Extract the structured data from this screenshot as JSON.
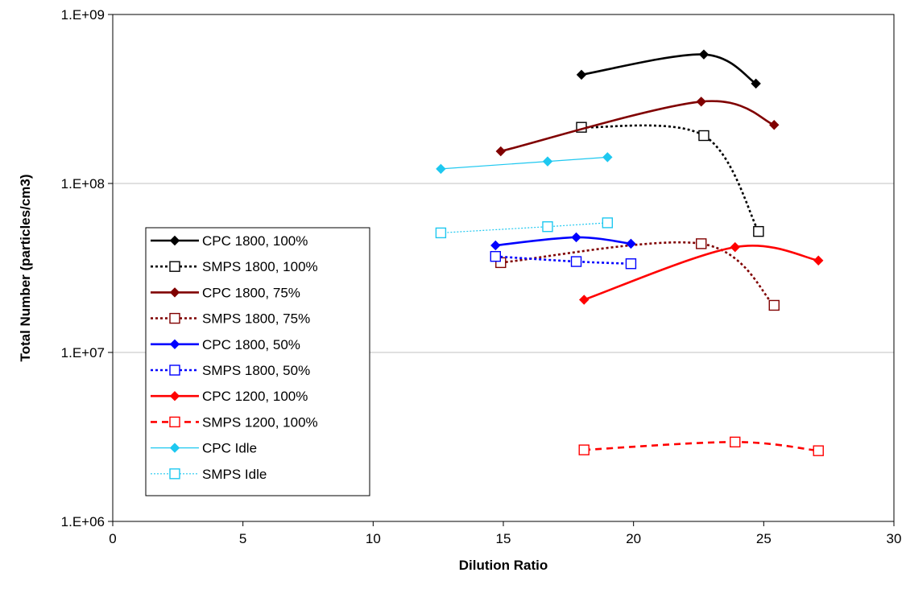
{
  "chart_data": {
    "type": "line",
    "title": "",
    "xlabel": "Dilution Ratio",
    "ylabel": "Total Number (particles/cm3)",
    "xlim": [
      0,
      30
    ],
    "x_ticks": [
      0,
      5,
      10,
      15,
      20,
      25,
      30
    ],
    "x_tick_labels": [
      "0",
      "5",
      "10",
      "15",
      "20",
      "25",
      "30"
    ],
    "y_scale": "log",
    "ylim": [
      1000000,
      1000000000
    ],
    "y_ticks": [
      1000000,
      10000000,
      100000000,
      1000000000
    ],
    "y_tick_labels": [
      "1.E+06",
      "1.E+07",
      "1.E+08",
      "1.E+09"
    ],
    "grid": "horizontal major",
    "legend_position": "left-center inside plot",
    "series": [
      {
        "name": "CPC 1800, 100%",
        "color": "#000000",
        "style": "solid",
        "marker": "diamond-filled",
        "smooth": true,
        "x": [
          18.0,
          22.7,
          24.7
        ],
        "y": [
          440000000,
          580000000,
          390000000
        ]
      },
      {
        "name": "SMPS 1800, 100%",
        "color": "#000000",
        "style": "dotted",
        "marker": "square-open",
        "smooth": true,
        "x": [
          18.0,
          22.7,
          24.8
        ],
        "y": [
          215000000,
          192000000,
          52000000
        ]
      },
      {
        "name": "CPC 1800, 75%",
        "color": "#800000",
        "style": "solid",
        "marker": "diamond-filled",
        "smooth": true,
        "x": [
          14.9,
          22.6,
          25.4
        ],
        "y": [
          155000000,
          305000000,
          222000000
        ]
      },
      {
        "name": "SMPS 1800, 75%",
        "color": "#800000",
        "style": "dotted",
        "marker": "square-open",
        "smooth": true,
        "x": [
          14.9,
          22.6,
          25.4
        ],
        "y": [
          34000000,
          44000000,
          19000000
        ]
      },
      {
        "name": "CPC 1800, 50%",
        "color": "#0000ff",
        "style": "solid",
        "marker": "diamond-filled",
        "smooth": true,
        "x": [
          14.7,
          17.8,
          19.9
        ],
        "y": [
          43000000,
          48000000,
          44000000
        ]
      },
      {
        "name": "SMPS 1800, 50%",
        "color": "#0000ff",
        "style": "dotted",
        "marker": "square-open",
        "smooth": true,
        "x": [
          14.7,
          17.8,
          19.9
        ],
        "y": [
          37000000,
          34500000,
          33500000
        ]
      },
      {
        "name": "CPC 1200, 100%",
        "color": "#ff0000",
        "style": "solid",
        "marker": "diamond-filled",
        "smooth": true,
        "x": [
          18.1,
          23.9,
          27.1
        ],
        "y": [
          20500000,
          42000000,
          35000000
        ]
      },
      {
        "name": "SMPS 1200, 100%",
        "color": "#ff0000",
        "style": "dashed",
        "marker": "square-open",
        "smooth": true,
        "x": [
          18.1,
          23.9,
          27.1
        ],
        "y": [
          2650000,
          2950000,
          2620000
        ]
      },
      {
        "name": "CPC Idle",
        "color": "#1ec8f0",
        "style": "thin-solid",
        "marker": "diamond-filled",
        "smooth": false,
        "x": [
          12.6,
          16.7,
          19.0
        ],
        "y": [
          122000000,
          135000000,
          143000000
        ]
      },
      {
        "name": "SMPS Idle",
        "color": "#1ec8f0",
        "style": "thin-dotted",
        "marker": "square-open",
        "smooth": false,
        "x": [
          12.6,
          16.7,
          19.0
        ],
        "y": [
          51000000,
          55500000,
          58500000
        ]
      }
    ]
  }
}
